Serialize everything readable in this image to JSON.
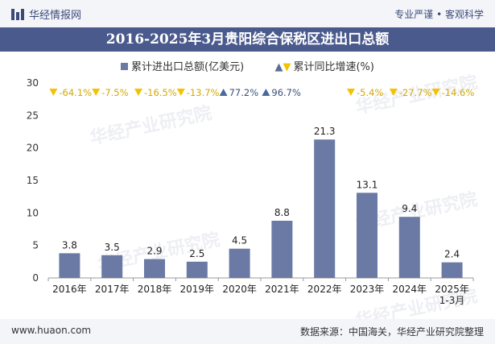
{
  "header": {
    "brand": "华经情报网",
    "tagline": "专业严谨 • 客观科学"
  },
  "title": "2016-2025年3月贵阳综合保税区进出口总额",
  "legend": {
    "bar": "累计进出口总额(亿美元)",
    "growth": "累计同比增速(%)"
  },
  "footer": {
    "left": "www.huaon.com",
    "right": "数据来源：中国海关，华经产业研究院整理"
  },
  "watermark": "华经产业研究院",
  "chart_data": {
    "type": "bar",
    "title": "2016-2025年3月贵阳综合保税区进出口总额",
    "categories": [
      "2016年",
      "2017年",
      "2018年",
      "2019年",
      "2020年",
      "2021年",
      "2022年",
      "2023年",
      "2024年",
      "2025年\n1-3月"
    ],
    "series": [
      {
        "name": "累计进出口总额(亿美元)",
        "values": [
          3.8,
          3.5,
          2.9,
          2.5,
          4.5,
          8.8,
          21.3,
          13.1,
          9.4,
          2.4
        ],
        "color": "#6b7aa5"
      },
      {
        "name": "累计同比增速(%)",
        "values": [
          -64.1,
          -7.5,
          -16.5,
          -13.7,
          77.2,
          96.7,
          null,
          -5.4,
          -27.7,
          -14.6
        ]
      }
    ],
    "value_labels": [
      "3.8",
      "3.5",
      "2.9",
      "2.5",
      "4.5",
      "8.8",
      "21.3",
      "13.1",
      "9.4",
      "2.4"
    ],
    "growth_labels": [
      "-64.1%",
      "-7.5%",
      "-16.5%",
      "-13.7%",
      "77.2%",
      "96.7%",
      "",
      "-5.4%",
      "-27.7%",
      "-14.6%"
    ],
    "yticks": [
      0,
      5,
      10,
      15,
      20,
      25,
      30
    ],
    "ylim": [
      0,
      30
    ],
    "colors": {
      "up": "#4a6a9c",
      "down": "#f2c300",
      "bar": "#6b7aa5"
    }
  }
}
